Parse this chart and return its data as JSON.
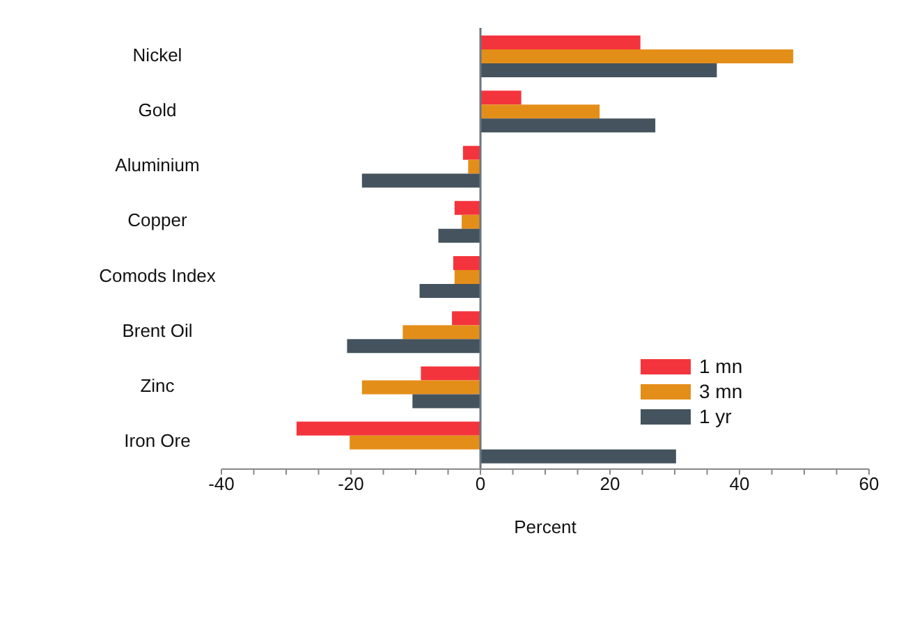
{
  "chart_data": {
    "type": "bar",
    "orientation": "horizontal",
    "categories": [
      "Nickel",
      "Gold",
      "Aluminium",
      "Copper",
      "Comods Index",
      "Brent Oil",
      "Zinc",
      "Iron Ore"
    ],
    "series": [
      {
        "name": "1 mn",
        "color": "#f4343c",
        "values": [
          24.7,
          6.3,
          -2.7,
          -4,
          -4.2,
          -4.4,
          -9.2,
          -28.4
        ]
      },
      {
        "name": "3 mn",
        "color": "#e48e1a",
        "values": [
          48.3,
          18.4,
          -1.9,
          -2.9,
          -4,
          -12,
          -18.3,
          -20.2
        ]
      },
      {
        "name": "1 yr",
        "color": "#44535d",
        "values": [
          36.5,
          27,
          -18.3,
          -6.5,
          -9.4,
          -20.6,
          -10.5,
          30.2
        ]
      }
    ],
    "xlim": [
      -40,
      60
    ],
    "xticks": [
      -40,
      {
        "value": -35,
        "label": null
      },
      -20,
      {
        "value": -30,
        "label": null
      },
      {
        "value": -25,
        "label": null
      },
      {
        "value": -15,
        "label": null
      },
      {
        "value": -10,
        "label": null
      },
      {
        "value": -5,
        "label": null
      },
      0,
      {
        "value": 5,
        "label": null
      },
      {
        "value": 10,
        "label": null
      },
      {
        "value": 15,
        "label": null
      },
      20,
      {
        "value": 25,
        "label": null
      },
      {
        "value": 30,
        "label": null
      },
      {
        "value": 35,
        "label": null
      },
      40,
      {
        "value": 45,
        "label": null
      },
      {
        "value": 50,
        "label": null
      },
      {
        "value": 55,
        "label": null
      },
      60
    ],
    "xlabel": "Percent",
    "legend": "right"
  }
}
